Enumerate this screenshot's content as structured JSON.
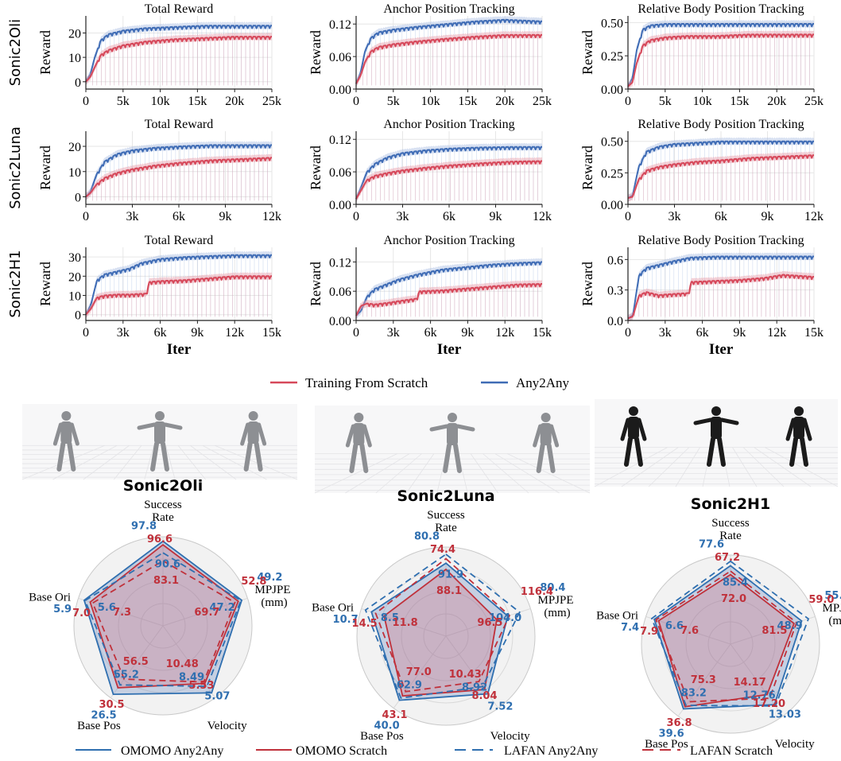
{
  "colors": {
    "scratch": "#d6485a",
    "any2any": "#3f6cb5",
    "scratch_fill": "#e79aa6",
    "any2any_fill": "#a8bde2",
    "grid": "#e6e6e6",
    "radar_bg": "#f2f2f2"
  },
  "row_labels": [
    "Sonic2Oli",
    "Sonic2Luna",
    "Sonic2H1"
  ],
  "plot_titles": [
    "Total Reward",
    "Anchor Position Tracking",
    "Relative Body Position Tracking"
  ],
  "ylabel": "Reward",
  "xlabel": "Iter",
  "legend_top": {
    "scratch": "Training From Scratch",
    "any2any": "Any2Any"
  },
  "legend_bottom": {
    "omomo_any2any": "OMOMO Any2Any",
    "omomo_scratch": "OMOMO Scratch",
    "lafan_any2any": "LAFAN Any2Any",
    "lafan_scratch": "LAFAN Scratch"
  },
  "chart_data": [
    {
      "type": "line",
      "row": 0,
      "col": 0,
      "title": "Total Reward",
      "ylabel": "Reward",
      "xlabel": "",
      "xlim": [
        0,
        25000
      ],
      "xticks": [
        "0",
        "5k",
        "10k",
        "15k",
        "20k",
        "25k"
      ],
      "ylim": [
        -3,
        27
      ],
      "yticks": [
        "0",
        "10",
        "20"
      ],
      "ytick_values": [
        0,
        10,
        20
      ],
      "series": [
        {
          "name": "Any2Any",
          "x": [
            0,
            600,
            1200,
            2000,
            3000,
            5000,
            8000,
            12000,
            16000,
            20000,
            25000
          ],
          "y": [
            0,
            3,
            10,
            17,
            19.5,
            21,
            22,
            22.5,
            23,
            23,
            23
          ]
        },
        {
          "name": "Training From Scratch",
          "x": [
            0,
            600,
            1200,
            2000,
            3000,
            5000,
            8000,
            12000,
            16000,
            20000,
            25000
          ],
          "y": [
            0,
            2,
            6,
            11,
            13,
            15,
            16.5,
            17.5,
            18,
            18.5,
            18.5
          ]
        }
      ]
    },
    {
      "type": "line",
      "row": 0,
      "col": 1,
      "title": "Anchor Position Tracking",
      "ylabel": "Reward",
      "xlabel": "",
      "xlim": [
        0,
        25000
      ],
      "xticks": [
        "0",
        "5k",
        "10k",
        "15k",
        "20k",
        "25k"
      ],
      "ylim": [
        0,
        0.135
      ],
      "yticks": [
        "0.00",
        "0.06",
        "0.12"
      ],
      "ytick_values": [
        0,
        0.06,
        0.12
      ],
      "series": [
        {
          "name": "Any2Any",
          "x": [
            0,
            600,
            1200,
            2000,
            3000,
            5000,
            8000,
            12000,
            16000,
            20000,
            25000
          ],
          "y": [
            0.01,
            0.03,
            0.07,
            0.095,
            0.105,
            0.11,
            0.115,
            0.12,
            0.125,
            0.128,
            0.125
          ]
        },
        {
          "name": "Training From Scratch",
          "x": [
            0,
            600,
            1200,
            2000,
            3000,
            5000,
            8000,
            12000,
            16000,
            20000,
            25000
          ],
          "y": [
            0.01,
            0.025,
            0.05,
            0.07,
            0.078,
            0.083,
            0.088,
            0.093,
            0.097,
            0.1,
            0.1
          ]
        }
      ]
    },
    {
      "type": "line",
      "row": 0,
      "col": 2,
      "title": "Relative Body Position Tracking",
      "ylabel": "Reward",
      "xlabel": "",
      "xlim": [
        0,
        25000
      ],
      "xticks": [
        "0",
        "5k",
        "10k",
        "15k",
        "20k",
        "25k"
      ],
      "ylim": [
        0,
        0.55
      ],
      "yticks": [
        "0.00",
        "0.25",
        "0.50"
      ],
      "ytick_values": [
        0,
        0.25,
        0.5
      ],
      "series": [
        {
          "name": "Any2Any",
          "x": [
            0,
            600,
            1200,
            2000,
            3000,
            5000,
            8000,
            12000,
            16000,
            20000,
            25000
          ],
          "y": [
            0.02,
            0.08,
            0.3,
            0.45,
            0.48,
            0.49,
            0.49,
            0.49,
            0.49,
            0.49,
            0.49
          ]
        },
        {
          "name": "Training From Scratch",
          "x": [
            0,
            600,
            1200,
            2000,
            3000,
            5000,
            8000,
            12000,
            16000,
            20000,
            25000
          ],
          "y": [
            0.02,
            0.05,
            0.2,
            0.33,
            0.37,
            0.39,
            0.4,
            0.4,
            0.41,
            0.41,
            0.41
          ]
        }
      ]
    },
    {
      "type": "line",
      "row": 1,
      "col": 0,
      "title": "Total Reward",
      "ylabel": "Reward",
      "xlabel": "",
      "xlim": [
        0,
        12000
      ],
      "xticks": [
        "0",
        "3k",
        "6k",
        "9k",
        "12k"
      ],
      "ylim": [
        -3,
        26
      ],
      "yticks": [
        "0",
        "10",
        "20"
      ],
      "ytick_values": [
        0,
        10,
        20
      ],
      "series": [
        {
          "name": "Any2Any",
          "x": [
            0,
            300,
            700,
            1200,
            2000,
            3000,
            4500,
            6000,
            8000,
            10000,
            12000
          ],
          "y": [
            0,
            2,
            9,
            14,
            17,
            18.5,
            19.5,
            20,
            20.5,
            20.5,
            20.5
          ]
        },
        {
          "name": "Training From Scratch",
          "x": [
            0,
            300,
            700,
            1200,
            2000,
            3000,
            4500,
            6000,
            8000,
            10000,
            12000
          ],
          "y": [
            0,
            1.5,
            5,
            7.5,
            9.5,
            11,
            12.5,
            13.5,
            14.5,
            15,
            15.5
          ]
        }
      ]
    },
    {
      "type": "line",
      "row": 1,
      "col": 1,
      "title": "Anchor Position Tracking",
      "ylabel": "Reward",
      "xlabel": "",
      "xlim": [
        0,
        12000
      ],
      "xticks": [
        "0",
        "3k",
        "6k",
        "9k",
        "12k"
      ],
      "ylim": [
        0,
        0.135
      ],
      "yticks": [
        "0.00",
        "0.06",
        "0.12"
      ],
      "ytick_values": [
        0,
        0.06,
        0.12
      ],
      "series": [
        {
          "name": "Any2Any",
          "x": [
            0,
            300,
            700,
            1200,
            2000,
            3000,
            4500,
            6000,
            8000,
            10000,
            12000
          ],
          "y": [
            0.01,
            0.03,
            0.06,
            0.075,
            0.087,
            0.095,
            0.1,
            0.103,
            0.105,
            0.106,
            0.106
          ]
        },
        {
          "name": "Training From Scratch",
          "x": [
            0,
            300,
            700,
            1200,
            2000,
            3000,
            4500,
            6000,
            8000,
            10000,
            12000
          ],
          "y": [
            0.01,
            0.025,
            0.045,
            0.053,
            0.058,
            0.063,
            0.068,
            0.072,
            0.076,
            0.079,
            0.08
          ]
        }
      ]
    },
    {
      "type": "line",
      "row": 1,
      "col": 2,
      "title": "Relative Body Position Tracking",
      "ylabel": "Reward",
      "xlabel": "",
      "xlim": [
        0,
        12000
      ],
      "xticks": [
        "0",
        "3k",
        "6k",
        "9k",
        "12k"
      ],
      "ylim": [
        0,
        0.58
      ],
      "yticks": [
        "0.00",
        "0.25",
        "0.50"
      ],
      "ytick_values": [
        0,
        0.25,
        0.5
      ],
      "series": [
        {
          "name": "Any2Any",
          "x": [
            0,
            300,
            700,
            1200,
            2000,
            3000,
            4500,
            6000,
            8000,
            10000,
            12000
          ],
          "y": [
            0.05,
            0.07,
            0.3,
            0.42,
            0.46,
            0.48,
            0.49,
            0.5,
            0.5,
            0.5,
            0.5
          ]
        },
        {
          "name": "Training From Scratch",
          "x": [
            0,
            300,
            700,
            1200,
            2000,
            3000,
            4500,
            6000,
            8000,
            10000,
            12000
          ],
          "y": [
            0.05,
            0.06,
            0.2,
            0.27,
            0.3,
            0.32,
            0.34,
            0.35,
            0.37,
            0.38,
            0.39
          ]
        }
      ]
    },
    {
      "type": "line",
      "row": 2,
      "col": 0,
      "title": "Total Reward",
      "ylabel": "Reward",
      "xlabel": "Iter",
      "xlim": [
        0,
        15000
      ],
      "xticks": [
        "0",
        "3k",
        "6k",
        "9k",
        "12k",
        "15k"
      ],
      "ylim": [
        -3,
        35
      ],
      "yticks": [
        "0",
        "10",
        "20",
        "30"
      ],
      "ytick_values": [
        0,
        10,
        20,
        30
      ],
      "series": [
        {
          "name": "Any2Any",
          "x": [
            0,
            400,
            900,
            1500,
            2500,
            3500,
            4500,
            6000,
            8000,
            10000,
            12000,
            15000
          ],
          "y": [
            0,
            5,
            18,
            21,
            22.5,
            24,
            27,
            29,
            30,
            30.5,
            31,
            31
          ]
        },
        {
          "name": "Training From Scratch",
          "x": [
            0,
            400,
            900,
            1500,
            2500,
            3500,
            4900,
            5100,
            6000,
            8000,
            10000,
            12000,
            15000
          ],
          "y": [
            0,
            3,
            9,
            10,
            10.5,
            10.5,
            11,
            17,
            17.5,
            18,
            19,
            20,
            20
          ]
        }
      ]
    },
    {
      "type": "line",
      "row": 2,
      "col": 1,
      "title": "Anchor Position Tracking",
      "ylabel": "Reward",
      "xlabel": "Iter",
      "xlim": [
        0,
        15000
      ],
      "xticks": [
        "0",
        "3k",
        "6k",
        "9k",
        "12k",
        "15k"
      ],
      "ylim": [
        0,
        0.15
      ],
      "yticks": [
        "0.00",
        "0.06",
        "0.12"
      ],
      "ytick_values": [
        0,
        0.06,
        0.12
      ],
      "series": [
        {
          "name": "Any2Any",
          "x": [
            0,
            400,
            900,
            1500,
            2500,
            3500,
            5000,
            7000,
            9000,
            11000,
            13000,
            15000
          ],
          "y": [
            0.01,
            0.02,
            0.05,
            0.065,
            0.075,
            0.085,
            0.095,
            0.105,
            0.11,
            0.115,
            0.118,
            0.12
          ]
        },
        {
          "name": "Training From Scratch",
          "x": [
            0,
            400,
            900,
            1500,
            2500,
            3500,
            4900,
            5100,
            7000,
            9000,
            11000,
            13000,
            15000
          ],
          "y": [
            0.01,
            0.03,
            0.035,
            0.033,
            0.036,
            0.04,
            0.045,
            0.06,
            0.062,
            0.066,
            0.07,
            0.074,
            0.075
          ]
        }
      ]
    },
    {
      "type": "line",
      "row": 2,
      "col": 2,
      "title": "Relative Body Position Tracking",
      "ylabel": "Reward",
      "xlabel": "Iter",
      "xlim": [
        0,
        15000
      ],
      "xticks": [
        "0",
        "3k",
        "6k",
        "9k",
        "12k",
        "15k"
      ],
      "ylim": [
        0,
        0.72
      ],
      "yticks": [
        "0.0",
        "0.3",
        "0.6"
      ],
      "ytick_values": [
        0,
        0.3,
        0.6
      ],
      "series": [
        {
          "name": "Any2Any",
          "x": [
            0,
            400,
            900,
            1500,
            2500,
            3500,
            5000,
            7000,
            9000,
            11000,
            13000,
            15000
          ],
          "y": [
            0.02,
            0.05,
            0.45,
            0.52,
            0.55,
            0.58,
            0.62,
            0.63,
            0.63,
            0.63,
            0.63,
            0.63
          ]
        },
        {
          "name": "Training From Scratch",
          "x": [
            0,
            400,
            900,
            1500,
            2500,
            3500,
            4900,
            5100,
            7000,
            9000,
            11000,
            12500,
            15000
          ],
          "y": [
            0.02,
            0.04,
            0.25,
            0.28,
            0.25,
            0.26,
            0.27,
            0.38,
            0.39,
            0.4,
            0.42,
            0.45,
            0.43
          ]
        }
      ]
    },
    {
      "type": "radar",
      "title": "Sonic2Oli",
      "axes": [
        "Success Rate",
        "MPJPE (mm)",
        "Velocity",
        "Base Pos",
        "Base Ori"
      ],
      "series": [
        {
          "name": "OMOMO Any2Any",
          "values": [
            "97.8",
            "49.2",
            "5.07",
            "26.5",
            "5.9"
          ]
        },
        {
          "name": "OMOMO Scratch",
          "values": [
            "96.6",
            "52.8",
            "5.53",
            "30.5",
            "7.0"
          ]
        },
        {
          "name": "LAFAN Any2Any",
          "values": [
            "90.6",
            "47.2",
            "8.49",
            "55.2",
            "5.6"
          ]
        },
        {
          "name": "LAFAN Scratch",
          "values": [
            "83.1",
            "69.7",
            "10.48",
            "56.5",
            "7.3"
          ]
        }
      ]
    },
    {
      "type": "radar",
      "title": "Sonic2Luna",
      "axes": [
        "Success Rate",
        "MPJPE (mm)",
        "Velocity",
        "Base Pos",
        "Base Ori"
      ],
      "series": [
        {
          "name": "OMOMO Any2Any",
          "values": [
            "80.8",
            "80.4",
            "7.52",
            "40.0",
            "10.7"
          ]
        },
        {
          "name": "OMOMO Scratch",
          "values": [
            "74.4",
            "116.4",
            "8.04",
            "43.1",
            "14.5"
          ]
        },
        {
          "name": "LAFAN Any2Any",
          "values": [
            "91.9",
            "104.0",
            "8.92",
            "62.9",
            "8.5"
          ]
        },
        {
          "name": "LAFAN Scratch",
          "values": [
            "88.1",
            "96.5",
            "10.43",
            "77.0",
            "11.8"
          ]
        }
      ]
    },
    {
      "type": "radar",
      "title": "Sonic2H1",
      "axes": [
        "Success Rate",
        "MPJPE (mm)",
        "Velocity",
        "Base Pos",
        "Base Ori"
      ],
      "series": [
        {
          "name": "OMOMO Any2Any",
          "values": [
            "77.6",
            "55.2",
            "13.03",
            "39.6",
            "7.4"
          ]
        },
        {
          "name": "OMOMO Scratch",
          "values": [
            "67.2",
            "59.0",
            "17.20",
            "36.8",
            "7.9"
          ]
        },
        {
          "name": "LAFAN Any2Any",
          "values": [
            "85.4",
            "48.9",
            "12.76",
            "83.2",
            "6.6"
          ]
        },
        {
          "name": "LAFAN Scratch",
          "values": [
            "72.0",
            "81.5",
            "14.17",
            "75.3",
            "7.6"
          ]
        }
      ]
    }
  ]
}
